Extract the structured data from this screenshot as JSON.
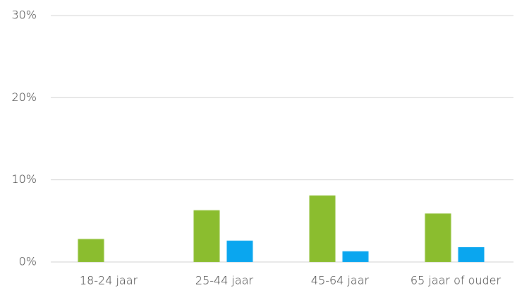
{
  "chart_data": {
    "type": "bar",
    "categories": [
      "18-24 jaar",
      "25-44 jaar",
      "45-64 jaar",
      "65 jaar of ouder"
    ],
    "series": [
      {
        "color": "#8bbd2f",
        "values": [
          2.8,
          6.3,
          8.1,
          5.9
        ]
      },
      {
        "color": "#0aa6ef",
        "values": [
          null,
          2.6,
          1.3,
          1.8
        ]
      }
    ],
    "ylim": [
      0,
      30
    ],
    "yticks": [
      {
        "value": 0,
        "label": "0%"
      },
      {
        "value": 10,
        "label": "10%"
      },
      {
        "value": 20,
        "label": "20%"
      },
      {
        "value": 30,
        "label": "30%"
      }
    ],
    "grid": true
  }
}
